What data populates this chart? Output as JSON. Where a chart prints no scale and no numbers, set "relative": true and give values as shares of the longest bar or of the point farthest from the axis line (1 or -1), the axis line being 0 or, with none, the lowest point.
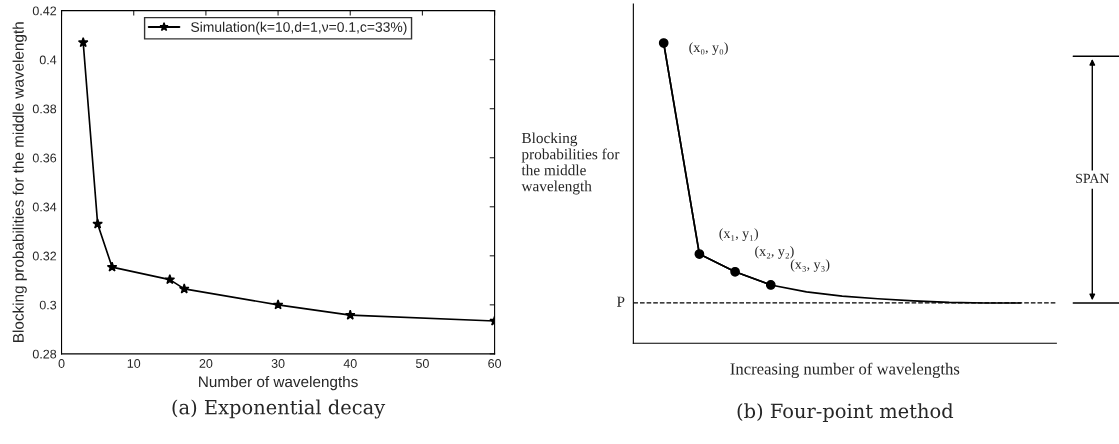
{
  "chart_data": [
    {
      "type": "line",
      "title": "(a) Exponential decay",
      "xlabel": "Number of wavelengths",
      "ylabel": "Blocking probabilities for the middle wavelength",
      "x": [
        3,
        5,
        7,
        15,
        17,
        30,
        40,
        60
      ],
      "series": [
        {
          "name": "Simulation(k=10,d=1,ν=0.1,c=33%)",
          "color": "#000000",
          "values": [
            0.407,
            0.333,
            0.3154,
            0.3103,
            0.3065,
            0.3,
            0.2958,
            0.2934
          ]
        }
      ],
      "xlim": [
        0,
        60
      ],
      "xticks": [
        0,
        10,
        20,
        30,
        40,
        50,
        60
      ],
      "ylim": [
        0.28,
        0.42
      ],
      "yticks": [
        0.28,
        0.3,
        0.32,
        0.34,
        0.36,
        0.38,
        0.4,
        0.42
      ],
      "marker": "star",
      "line_style": "solid",
      "legend": "top",
      "grid": false
    },
    {
      "type": "line",
      "relative": true,
      "title": "(b) Four-point method",
      "xlabel": "Increasing number of wavelengths",
      "ylabel": "Blocking probabilities for the middle wavelength",
      "categories": [
        null,
        null,
        null,
        null,
        null,
        null,
        null,
        null,
        null,
        null,
        null
      ],
      "series": [
        {
          "type": "line",
          "color": "#000000",
          "marker": "none",
          "values": [
            1.0,
            0.297,
            0.238,
            0.194,
            0.171,
            0.157,
            0.148,
            0.141,
            0.136,
            0.134,
            0.134
          ]
        },
        {
          "type": "line",
          "color": "#000000",
          "marker": "circle",
          "values": [
            1.0,
            0.297,
            0.238,
            0.194,
            null,
            null,
            null,
            null,
            null,
            null,
            null
          ]
        }
      ],
      "ref_lines": [
        {
          "axis": "y",
          "value": 0.134,
          "label": "P",
          "color": "#000000",
          "line_style": "dashed"
        }
      ],
      "annotations": [
        "(x₀, y₀)",
        "(x₁, y₁)",
        "(x₂, y₂)",
        "(x₃, y₃)",
        "SPAN"
      ],
      "legend": false,
      "grid": false
    }
  ]
}
